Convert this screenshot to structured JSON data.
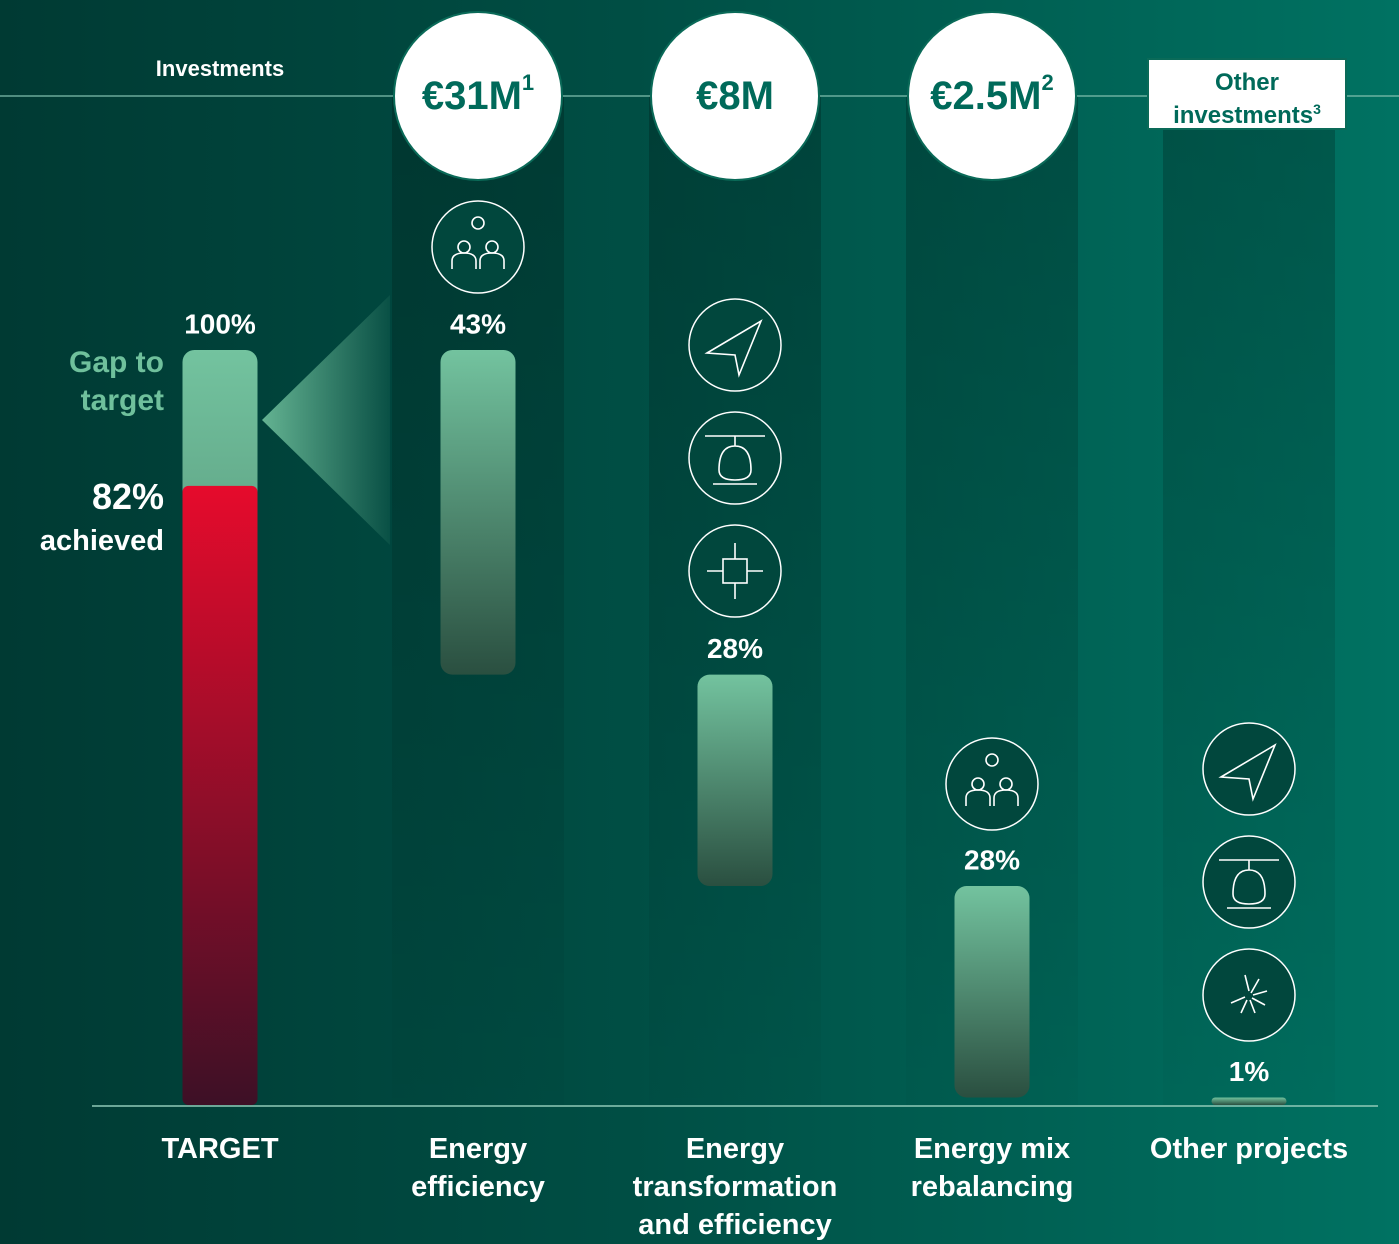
{
  "chart_data": {
    "type": "waterfall",
    "header": "Investments",
    "target": {
      "label": "TARGET",
      "value": 100,
      "value_label": "100%",
      "achieved": 82,
      "achieved_label": "82%",
      "achieved_text": "achieved",
      "gap_label": "Gap to target"
    },
    "categories": [
      "Energy efficiency",
      "Energy transformation and efficiency",
      "Energy mix rebalancing",
      "Other projects"
    ],
    "values": [
      43,
      28,
      28,
      1
    ],
    "value_labels": [
      "43%",
      "28%",
      "28%",
      "1%"
    ],
    "investments": [
      {
        "label": "€31M",
        "note": "1"
      },
      {
        "label": "€8M"
      },
      {
        "label": "€2.5M",
        "note": "2"
      },
      {
        "label": "Other investments",
        "note": "3"
      }
    ],
    "ylim": [
      0,
      100
    ]
  }
}
